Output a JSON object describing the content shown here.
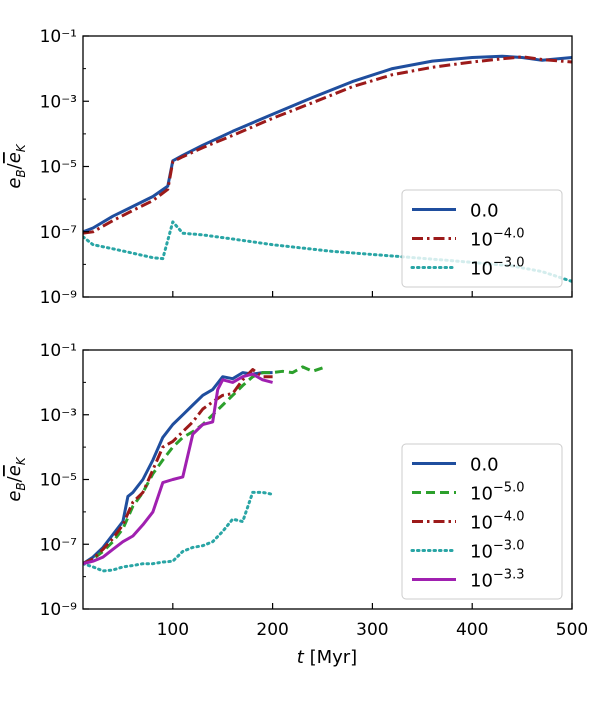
{
  "figure": {
    "xlabel": "t [Myr]"
  },
  "chart_data": [
    {
      "type": "line",
      "ylabel": "e_B/e_K",
      "yscale": "log",
      "xlim": [
        10,
        500
      ],
      "ylim": [
        1e-09,
        0.1
      ],
      "xticks": [
        100,
        200,
        300,
        400,
        500
      ],
      "show_x_tick_labels": false,
      "yticks": [
        {
          "value": 1e-09,
          "label": "10⁻⁹"
        },
        {
          "value": 1e-07,
          "label": "10⁻⁷"
        },
        {
          "value": 1e-05,
          "label": "10⁻⁵"
        },
        {
          "value": 0.001,
          "label": "10⁻³"
        },
        {
          "value": 0.1,
          "label": "10⁻¹"
        }
      ],
      "legend_loc": "lower-right",
      "grid": false,
      "series": [
        {
          "name": "0.0",
          "color": "#1f4e9e",
          "dash": "solid",
          "x": [
            10,
            20,
            40,
            60,
            80,
            95,
            100,
            110,
            130,
            160,
            200,
            240,
            280,
            320,
            360,
            400,
            430,
            450,
            470,
            500
          ],
          "y": [
            1e-07,
            1.3e-07,
            3e-07,
            6e-07,
            1.2e-06,
            2.5e-06,
            1.5e-05,
            2.2e-05,
            4.5e-05,
            0.00012,
            0.0004,
            0.0013,
            0.004,
            0.01,
            0.017,
            0.022,
            0.024,
            0.022,
            0.018,
            0.022
          ]
        },
        {
          "name": "10^{-4.0}",
          "color": "#9c1a1a",
          "dash": "dashdot",
          "x": [
            10,
            20,
            40,
            60,
            80,
            95,
            100,
            110,
            130,
            160,
            200,
            240,
            280,
            320,
            360,
            400,
            430,
            450,
            470,
            500
          ],
          "y": [
            9e-08,
            1e-07,
            2.2e-07,
            4.5e-07,
            9e-07,
            2e-06,
            1.4e-05,
            2e-05,
            3.8e-05,
            9e-05,
            0.0003,
            0.0009,
            0.0028,
            0.0065,
            0.011,
            0.016,
            0.02,
            0.023,
            0.019,
            0.016
          ]
        },
        {
          "name": "10^{-3.0}",
          "color": "#29a5a5",
          "dash": "dotted",
          "x": [
            10,
            20,
            40,
            60,
            80,
            90,
            100,
            110,
            130,
            160,
            200,
            260,
            320,
            380,
            440,
            470,
            500
          ],
          "y": [
            7e-08,
            4e-08,
            3e-08,
            2.2e-08,
            1.6e-08,
            1.5e-08,
            2e-07,
            9e-08,
            8e-08,
            6e-08,
            4e-08,
            2.5e-08,
            1.8e-08,
            1.3e-08,
            9e-09,
            6e-09,
            3e-09
          ]
        }
      ]
    },
    {
      "type": "line",
      "ylabel": "e_B/e_K",
      "yscale": "log",
      "xlim": [
        10,
        500
      ],
      "ylim": [
        1e-09,
        0.1
      ],
      "xticks": [
        100,
        200,
        300,
        400,
        500
      ],
      "show_x_tick_labels": true,
      "yticks": [
        {
          "value": 1e-09,
          "label": "10⁻⁹"
        },
        {
          "value": 1e-07,
          "label": "10⁻⁷"
        },
        {
          "value": 1e-05,
          "label": "10⁻⁵"
        },
        {
          "value": 0.001,
          "label": "10⁻³"
        },
        {
          "value": 0.1,
          "label": "10⁻¹"
        }
      ],
      "legend_loc": "lower-right",
      "grid": false,
      "series": [
        {
          "name": "0.0",
          "color": "#1f4e9e",
          "dash": "solid",
          "x": [
            10,
            20,
            30,
            40,
            50,
            55,
            60,
            70,
            80,
            90,
            100,
            110,
            120,
            130,
            140,
            150,
            160,
            170,
            180,
            190,
            200
          ],
          "y": [
            2.5e-08,
            4e-08,
            8e-08,
            2e-07,
            5e-07,
            3e-06,
            4e-06,
            1e-05,
            4e-05,
            0.0002,
            0.0005,
            0.001,
            0.002,
            0.004,
            0.006,
            0.015,
            0.013,
            0.02,
            0.018,
            0.02,
            0.02
          ]
        },
        {
          "name": "10^{-5.0}",
          "color": "#2ca02c",
          "dash": "dashed",
          "x": [
            10,
            20,
            30,
            40,
            50,
            60,
            70,
            80,
            90,
            100,
            110,
            120,
            130,
            140,
            150,
            160,
            170,
            180,
            190,
            200,
            210,
            220,
            230,
            240,
            250
          ],
          "y": [
            2.5e-08,
            3.5e-08,
            6e-08,
            1.2e-07,
            3e-07,
            1.5e-06,
            4e-06,
            1.5e-05,
            4e-05,
            0.0001,
            0.0002,
            0.0003,
            0.0005,
            0.001,
            0.002,
            0.004,
            0.008,
            0.015,
            0.02,
            0.02,
            0.022,
            0.02,
            0.03,
            0.022,
            0.028
          ]
        },
        {
          "name": "10^{-4.0}",
          "color": "#9c1a1a",
          "dash": "dashdot",
          "x": [
            10,
            20,
            30,
            40,
            50,
            60,
            70,
            80,
            90,
            100,
            110,
            120,
            130,
            140,
            150,
            160,
            170,
            180,
            190,
            200
          ],
          "y": [
            2.5e-08,
            3.5e-08,
            7e-08,
            1.5e-07,
            4e-07,
            2e-06,
            4e-06,
            2e-05,
            0.0001,
            0.00015,
            0.0003,
            0.0006,
            0.0015,
            0.0025,
            0.004,
            0.0045,
            0.012,
            0.025,
            0.015,
            0.015
          ]
        },
        {
          "name": "10^{-3.0}",
          "color": "#29a5a5",
          "dash": "dotted",
          "x": [
            10,
            20,
            30,
            40,
            50,
            60,
            70,
            80,
            90,
            100,
            110,
            120,
            130,
            140,
            150,
            160,
            170,
            180,
            190,
            200
          ],
          "y": [
            2.5e-08,
            2e-08,
            1.5e-08,
            1.6e-08,
            2e-08,
            2.2e-08,
            2.5e-08,
            2.5e-08,
            2.8e-08,
            3e-08,
            6e-08,
            8e-08,
            9e-08,
            1.2e-07,
            2.5e-07,
            6e-07,
            5e-07,
            4e-06,
            4e-06,
            3.5e-06
          ]
        },
        {
          "name": "10^{-3.3}",
          "color": "#a020b0",
          "dash": "solid",
          "x": [
            10,
            20,
            30,
            40,
            50,
            60,
            70,
            80,
            90,
            100,
            110,
            120,
            130,
            140,
            145,
            150,
            160,
            170,
            180,
            190,
            200
          ],
          "y": [
            2.5e-08,
            3e-08,
            4e-08,
            7e-08,
            1.2e-07,
            1.8e-07,
            4e-07,
            1e-06,
            8e-06,
            1e-05,
            1.2e-05,
            0.00025,
            0.0005,
            0.0006,
            0.006,
            0.012,
            0.01,
            0.015,
            0.018,
            0.012,
            0.01
          ]
        }
      ]
    }
  ]
}
